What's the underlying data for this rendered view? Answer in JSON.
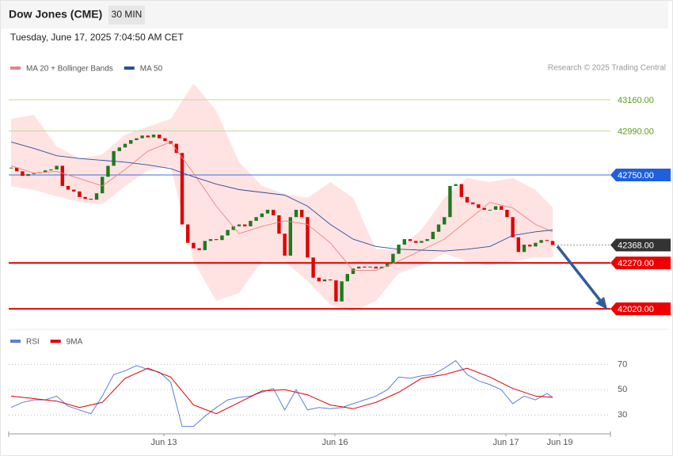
{
  "chart_data": [
    {
      "type": "candlestick",
      "title": "Dow Jones (CME)",
      "timeframe": "30 MIN",
      "subtitle": "Tuesday, June 17, 2025 7:04:50 AM CET",
      "source": "Research © 2025 Trading Central",
      "up_color": "#1e7b1e",
      "down_color": "#e00000",
      "x": [
        0,
        1,
        2,
        3,
        4,
        5,
        6,
        7,
        8,
        9,
        10,
        11,
        12,
        13,
        14,
        15,
        16,
        17,
        18,
        19,
        20,
        21,
        22,
        23,
        24,
        25,
        26,
        27,
        28,
        29,
        30,
        31,
        32,
        33,
        34,
        35,
        36,
        37,
        38,
        39,
        40,
        41,
        42,
        43,
        44,
        45,
        46,
        47,
        48,
        49,
        50,
        51,
        52,
        53,
        54,
        55,
        56,
        57,
        58,
        59,
        60,
        61,
        62,
        63,
        64,
        65,
        66,
        67,
        68,
        69,
        70,
        71,
        72,
        73,
        74,
        75,
        76,
        77,
        78,
        79,
        80,
        81,
        82,
        83,
        84,
        85,
        86,
        87,
        88,
        89,
        90,
        91,
        92,
        93,
        94,
        95
      ],
      "close": [
        42790,
        42770,
        42745,
        42755,
        42760,
        42765,
        42775,
        42780,
        42800,
        42690,
        42670,
        42660,
        42630,
        42620,
        42615,
        42650,
        42740,
        42800,
        42880,
        42900,
        42920,
        42940,
        42950,
        42965,
        42955,
        42970,
        42950,
        42935,
        42920,
        42870,
        42480,
        42380,
        42350,
        42340,
        42390,
        42400,
        42395,
        42420,
        42450,
        42470,
        42480,
        42470,
        42500,
        42520,
        42540,
        42560,
        42530,
        42430,
        42310,
        42520,
        42560,
        42520,
        42300,
        42190,
        42170,
        42180,
        42175,
        42060,
        42170,
        42210,
        42240,
        42250,
        42245,
        42250,
        42240,
        42250,
        42270,
        42320,
        42370,
        42400,
        42390,
        42380,
        42390,
        42400,
        42440,
        42480,
        42520,
        42690,
        42700,
        42630,
        42600,
        42590,
        42570,
        42560,
        42560,
        42580,
        42560,
        42520,
        42410,
        42330,
        42370,
        42360,
        42380,
        42395,
        42390,
        42368
      ],
      "series": [
        {
          "name": "MA 20 + Bollinger Bands",
          "color": "#f08080",
          "band_color": "#ffdede",
          "x": [
            0,
            4,
            8,
            12,
            16,
            20,
            24,
            28,
            32,
            36,
            40,
            44,
            48,
            52,
            56,
            60,
            64,
            68,
            72,
            76,
            80,
            84,
            88,
            92,
            95
          ],
          "values": [
            42800,
            42760,
            42770,
            42730,
            42690,
            42780,
            42880,
            42930,
            42760,
            42580,
            42430,
            42470,
            42500,
            42480,
            42380,
            42230,
            42230,
            42280,
            42340,
            42400,
            42500,
            42600,
            42570,
            42480,
            42440
          ],
          "upper": [
            43056,
            43078,
            42905,
            42840,
            42862,
            42970,
            43013,
            43056,
            43250,
            43100,
            42819,
            42690,
            42646,
            42625,
            42711,
            42625,
            42344,
            42344,
            42452,
            42625,
            42733,
            42711,
            42733,
            42668,
            42573
          ],
          "lower": [
            42689,
            42668,
            42633,
            42603,
            42590,
            42689,
            42776,
            42797,
            42279,
            42063,
            42106,
            42279,
            42279,
            42171,
            42042,
            42007,
            42063,
            42214,
            42257,
            42322,
            42279,
            42257,
            42279,
            42301,
            42301
          ]
        },
        {
          "name": "MA 50",
          "color": "#2b4f9a",
          "x": [
            0,
            4,
            8,
            12,
            16,
            20,
            24,
            28,
            32,
            36,
            40,
            44,
            48,
            52,
            56,
            60,
            64,
            68,
            72,
            76,
            80,
            84,
            88,
            92,
            95
          ],
          "values": [
            42930,
            42895,
            42855,
            42840,
            42830,
            42820,
            42805,
            42785,
            42740,
            42700,
            42670,
            42655,
            42640,
            42580,
            42480,
            42400,
            42360,
            42345,
            42340,
            42335,
            42345,
            42360,
            42420,
            42440,
            42450
          ]
        }
      ],
      "levels": [
        {
          "value": 43160,
          "label": "43160.00",
          "color": "#5a9e1a",
          "line_color": "#b9dc92",
          "tag": false,
          "line": "solid"
        },
        {
          "value": 42990,
          "label": "42990.00",
          "color": "#5a9e1a",
          "line_color": "#b9dc92",
          "tag": false,
          "line": "solid"
        },
        {
          "value": 42750,
          "label": "42750.00",
          "color": "#1f5fe0",
          "line_color": "#3a6fe0",
          "tag": true,
          "line": "solid"
        },
        {
          "value": 42368,
          "label": "42368.00",
          "color": "#333333",
          "line_color": "#999999",
          "tag": true,
          "line": "dotted"
        },
        {
          "value": 42270,
          "label": "42270.00",
          "color": "#ee0000",
          "line_color": "#ee0000",
          "tag": true,
          "line": "solid"
        },
        {
          "value": 42020,
          "label": "42020.00",
          "color": "#ee0000",
          "line_color": "#ee0000",
          "tag": true,
          "line": "solid"
        }
      ],
      "xlim": [
        -0.42,
        105.14
      ],
      "ylim": [
        41934,
        43294
      ]
    },
    {
      "type": "line",
      "series": [
        {
          "name": "RSI",
          "color": "#5b7fd6",
          "x": [
            0,
            2,
            4,
            6,
            8,
            10,
            12,
            14,
            16,
            18,
            20,
            22,
            24,
            26,
            28,
            30,
            32,
            34,
            36,
            38,
            40,
            42,
            44,
            46,
            48,
            50,
            52,
            54,
            56,
            58,
            60,
            62,
            64,
            66,
            68,
            70,
            72,
            74,
            76,
            78,
            80,
            82,
            84,
            86,
            88,
            90,
            92,
            94,
            95
          ],
          "values": [
            36,
            40,
            42,
            42,
            45,
            37,
            34,
            31,
            45,
            62,
            65,
            69,
            66,
            64,
            56,
            21,
            21,
            29,
            36,
            42,
            44,
            45,
            48,
            51,
            34,
            50,
            34,
            36,
            35,
            36,
            39,
            42,
            45,
            50,
            60,
            59,
            61,
            62,
            67,
            73,
            62,
            57,
            54,
            50,
            39,
            45,
            42,
            47,
            44
          ]
        },
        {
          "name": "9MA",
          "color": "#e00000",
          "x": [
            0,
            4,
            8,
            12,
            16,
            20,
            24,
            28,
            32,
            36,
            40,
            44,
            48,
            52,
            56,
            60,
            64,
            68,
            72,
            76,
            80,
            84,
            88,
            92,
            95
          ],
          "values": [
            45,
            43,
            41,
            36,
            40,
            59,
            67,
            60,
            38,
            31,
            40,
            49,
            50,
            46,
            38,
            35,
            40,
            48,
            59,
            62,
            67,
            60,
            51,
            45,
            44
          ]
        }
      ],
      "xlim": [
        -0.42,
        105.14
      ],
      "ylim": [
        17,
        89
      ],
      "yticks": [
        30,
        50,
        70
      ],
      "xticks": [
        {
          "value": 26.8,
          "label": "Jun 13"
        },
        {
          "value": 56.8,
          "label": "Jun 16"
        },
        {
          "value": 86.8,
          "label": "Jun 17"
        },
        {
          "value": 96.25,
          "label": "Jun 19"
        }
      ]
    }
  ]
}
